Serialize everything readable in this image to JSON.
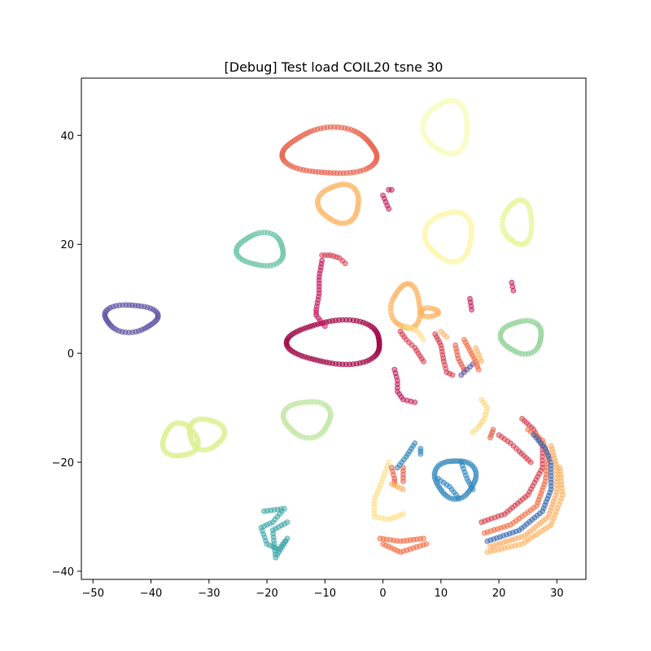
{
  "chart_data": {
    "type": "scatter",
    "title": "[Debug] Test load COIL20 tsne 30",
    "xlabel": "",
    "ylabel": "",
    "xlim": [
      -52,
      35
    ],
    "ylim": [
      -41.5,
      50.5
    ],
    "grid": false,
    "legend": "none",
    "x_ticks": [
      -50,
      -40,
      -30,
      -20,
      -10,
      0,
      10,
      20,
      30
    ],
    "x_tick_labels": [
      "−50",
      "−40",
      "−30",
      "−20",
      "−10",
      "0",
      "10",
      "20",
      "30"
    ],
    "y_ticks": [
      -40,
      -20,
      0,
      20,
      40
    ],
    "y_tick_labels": [
      "−40",
      "−20",
      "0",
      "20",
      "40"
    ],
    "point_opacity": 0.5,
    "clusters": [
      {
        "shape": "ellipse",
        "center": [
          -43.5,
          6.5
        ],
        "radii": [
          4.5,
          2.5
        ],
        "color": "#5e4fa2"
      },
      {
        "shape": "ellipse",
        "center": [
          -9,
          37
        ],
        "radii": [
          8,
          4.2
        ],
        "color": "#e8604a"
      },
      {
        "shape": "ellipse",
        "center": [
          11,
          41.5
        ],
        "radii": [
          3.8,
          4.8
        ],
        "color": "#f8fcb8"
      },
      {
        "shape": "ellipse",
        "center": [
          -21,
          19
        ],
        "radii": [
          4,
          3
        ],
        "color": "#66c2a5"
      },
      {
        "shape": "ellipse",
        "center": [
          -7.5,
          27.5
        ],
        "radii": [
          3.5,
          3.5
        ],
        "color": "#fdb462"
      },
      {
        "shape": "ellipse",
        "center": [
          11.5,
          21.5
        ],
        "radii": [
          4,
          4.5
        ],
        "color": "#fef5a8"
      },
      {
        "shape": "ellipse",
        "center": [
          23.3,
          24
        ],
        "radii": [
          2.5,
          4
        ],
        "color": "#e6f598"
      },
      {
        "shape": "ellipse",
        "center": [
          -8,
          2
        ],
        "radii": [
          8,
          4
        ],
        "color": "#9e0142"
      },
      {
        "shape": "ellipse",
        "center": [
          24,
          3
        ],
        "radii": [
          3.5,
          3
        ],
        "color": "#8ed196"
      },
      {
        "shape": "ellipse",
        "center": [
          -13,
          -12
        ],
        "radii": [
          4,
          3.3
        ],
        "color": "#bfe5a0"
      },
      {
        "shape": "ellipse",
        "center": [
          -35,
          -16
        ],
        "radii": [
          3,
          3
        ],
        "color": "#d9ef8b"
      },
      {
        "shape": "ellipse",
        "center": [
          -30.5,
          -14.8
        ],
        "radii": [
          3,
          2.8
        ],
        "color": "#d9ef8b"
      },
      {
        "shape": "ellipse",
        "center": [
          4,
          8.5
        ],
        "radii": [
          2.5,
          4
        ],
        "color": "#fdb462"
      },
      {
        "shape": "ellipse",
        "center": [
          8,
          7.5
        ],
        "radii": [
          1.5,
          0.8
        ],
        "color": "#fdb462"
      },
      {
        "shape": "ellipse",
        "center": [
          12.5,
          -23
        ],
        "radii": [
          3.5,
          3.5
        ],
        "color": "#3288bd"
      },
      {
        "shape": "polyline",
        "points": [
          [
            -10.5,
            18
          ],
          [
            -9,
            18
          ],
          [
            -7.5,
            17.5
          ],
          [
            -6.5,
            16.5
          ]
        ],
        "color": "#d53e4f"
      },
      {
        "shape": "polyline",
        "points": [
          [
            -10.5,
            17
          ],
          [
            -11,
            14
          ],
          [
            -11,
            11
          ],
          [
            -11.5,
            8
          ],
          [
            -11.5,
            7
          ],
          [
            -10.5,
            5.5
          ],
          [
            -10,
            5
          ]
        ],
        "color": "#c2185b"
      },
      {
        "shape": "polyline",
        "points": [
          [
            2,
            -3
          ],
          [
            2.5,
            -5
          ],
          [
            2.5,
            -7
          ],
          [
            3.5,
            -8.5
          ],
          [
            5.5,
            -9
          ]
        ],
        "color": "#c2185b"
      },
      {
        "shape": "polyline",
        "points": [
          [
            -20.5,
            -29
          ],
          [
            -17,
            -28.5
          ],
          [
            -19,
            -31
          ],
          [
            -21,
            -32
          ],
          [
            -20,
            -35
          ],
          [
            -18,
            -36
          ],
          [
            -16.5,
            -34
          ],
          [
            -18.5,
            -37.5
          ],
          [
            -19,
            -32.5
          ],
          [
            -16.5,
            -31
          ]
        ],
        "color": "#3fa7a7"
      },
      {
        "shape": "polyline",
        "points": [
          [
            1,
            -20
          ],
          [
            0,
            -23
          ],
          [
            -1.5,
            -27
          ],
          [
            -1.5,
            -30
          ],
          [
            1,
            -30.5
          ],
          [
            3.5,
            -29.5
          ]
        ],
        "color": "#fee08b"
      },
      {
        "shape": "polyline",
        "points": [
          [
            -0.5,
            -34
          ],
          [
            3,
            -34.5
          ],
          [
            7,
            -34
          ]
        ],
        "color": "#f46d43"
      },
      {
        "shape": "polyline",
        "points": [
          [
            0,
            -35
          ],
          [
            3,
            -36.5
          ],
          [
            7.5,
            -35
          ]
        ],
        "color": "#f46d43"
      },
      {
        "shape": "polyline",
        "points": [
          [
            1.5,
            -21
          ],
          [
            2,
            -23
          ],
          [
            2,
            -24
          ]
        ],
        "color": "#e8604a"
      },
      {
        "shape": "polyline",
        "points": [
          [
            3.5,
            -21
          ],
          [
            3.5,
            -23.5
          ]
        ],
        "color": "#e8604a"
      },
      {
        "shape": "polyline",
        "points": [
          [
            1.5,
            -24
          ],
          [
            3.5,
            -25
          ]
        ],
        "color": "#fdb462"
      },
      {
        "shape": "polyline",
        "points": [
          [
            5.5,
            -16.5
          ],
          [
            4,
            -19
          ],
          [
            2.5,
            -21
          ]
        ],
        "color": "#3288bd"
      },
      {
        "shape": "polyline",
        "points": [
          [
            6.5,
            -17.5
          ],
          [
            6.5,
            -18.5
          ]
        ],
        "color": "#3288bd"
      },
      {
        "shape": "polyline",
        "points": [
          [
            13,
            -26.5
          ],
          [
            11.5,
            -24.5
          ],
          [
            9.5,
            -23
          ]
        ],
        "color": "#3288bd"
      },
      {
        "shape": "polyline",
        "points": [
          [
            13.5,
            -20
          ],
          [
            14.5,
            -23
          ],
          [
            15.5,
            -25
          ]
        ],
        "color": "#3288bd"
      },
      {
        "shape": "polyline",
        "points": [
          [
            17,
            -31
          ],
          [
            21,
            -29.5
          ],
          [
            25,
            -26
          ],
          [
            27.5,
            -21
          ],
          [
            27.5,
            -17
          ],
          [
            26,
            -14
          ],
          [
            24,
            -12
          ]
        ],
        "color": "#d53e4f"
      },
      {
        "shape": "polyline",
        "points": [
          [
            17.5,
            -33
          ],
          [
            22,
            -31.5
          ],
          [
            26.5,
            -28
          ],
          [
            28,
            -23.5
          ],
          [
            28.5,
            -19
          ],
          [
            27.5,
            -16
          ],
          [
            25,
            -14
          ]
        ],
        "color": "#f46d43"
      },
      {
        "shape": "polyline",
        "points": [
          [
            18,
            -34.5
          ],
          [
            23.5,
            -32.5
          ],
          [
            27.5,
            -29
          ],
          [
            29,
            -25
          ],
          [
            29,
            -20
          ],
          [
            28,
            -17.5
          ],
          [
            26,
            -15
          ]
        ],
        "color": "#3b6bb0"
      },
      {
        "shape": "polyline",
        "points": [
          [
            18.5,
            -35.5
          ],
          [
            24.5,
            -33.5
          ],
          [
            28.5,
            -30
          ],
          [
            30,
            -25.5
          ],
          [
            30,
            -21
          ],
          [
            29,
            -17
          ]
        ],
        "color": "#fdae61"
      },
      {
        "shape": "polyline",
        "points": [
          [
            18,
            -36.5
          ],
          [
            24,
            -35
          ],
          [
            29,
            -31.5
          ],
          [
            31,
            -26
          ],
          [
            30.5,
            -21
          ]
        ],
        "color": "#fdb462"
      },
      {
        "shape": "polyline",
        "points": [
          [
            20,
            -15
          ],
          [
            22,
            -16.5
          ],
          [
            23.5,
            -18
          ],
          [
            25.5,
            -20
          ]
        ],
        "color": "#d53e4f"
      },
      {
        "shape": "polyline",
        "points": [
          [
            19,
            -14
          ],
          [
            18.5,
            -15.5
          ]
        ],
        "color": "#e8604a"
      },
      {
        "shape": "polyline",
        "points": [
          [
            22.2,
            13
          ],
          [
            22.5,
            11.5
          ]
        ],
        "color": "#c2185b"
      },
      {
        "shape": "polyline",
        "points": [
          [
            15,
            10
          ],
          [
            15.3,
            8
          ]
        ],
        "color": "#c2185b"
      },
      {
        "shape": "polyline",
        "points": [
          [
            0,
            29
          ],
          [
            1,
            26.5
          ]
        ],
        "color": "#c2185b"
      },
      {
        "shape": "polyline",
        "points": [
          [
            1,
            30
          ],
          [
            1.5,
            30
          ]
        ],
        "color": "#c2185b"
      },
      {
        "shape": "polyline",
        "points": [
          [
            3,
            4
          ],
          [
            4,
            2.5
          ],
          [
            5.5,
            1
          ],
          [
            7,
            -1.5
          ]
        ],
        "color": "#d53e4f"
      },
      {
        "shape": "polyline",
        "points": [
          [
            4,
            5
          ],
          [
            6,
            4
          ],
          [
            7,
            2.5
          ]
        ],
        "color": "#fee08b"
      },
      {
        "shape": "polyline",
        "points": [
          [
            9,
            3.5
          ],
          [
            10,
            1.5
          ],
          [
            10.5,
            -1.5
          ],
          [
            11,
            -3.5
          ],
          [
            12,
            -4
          ]
        ],
        "color": "#d53e4f"
      },
      {
        "shape": "polyline",
        "points": [
          [
            10,
            4
          ],
          [
            11,
            3
          ]
        ],
        "color": "#fdb462"
      },
      {
        "shape": "polyline",
        "points": [
          [
            12.5,
            1.5
          ],
          [
            13,
            -1
          ],
          [
            14,
            -3
          ]
        ],
        "color": "#e8604a"
      },
      {
        "shape": "polyline",
        "points": [
          [
            13.5,
            -4
          ],
          [
            14.5,
            -3
          ],
          [
            15.5,
            -2
          ]
        ],
        "color": "#5e4fa2"
      },
      {
        "shape": "polyline",
        "points": [
          [
            14,
            2.5
          ],
          [
            15,
            0.5
          ],
          [
            16,
            -1.5
          ],
          [
            16.5,
            -3
          ]
        ],
        "color": "#f46d43"
      },
      {
        "shape": "polyline",
        "points": [
          [
            16,
            1
          ],
          [
            17,
            -1.5
          ]
        ],
        "color": "#fdb462"
      },
      {
        "shape": "polyline",
        "points": [
          [
            17,
            -8.5
          ],
          [
            18,
            -10
          ],
          [
            17.5,
            -12
          ],
          [
            16.5,
            -13.5
          ],
          [
            15.5,
            -14.5
          ]
        ],
        "color": "#fdd87a"
      }
    ]
  }
}
